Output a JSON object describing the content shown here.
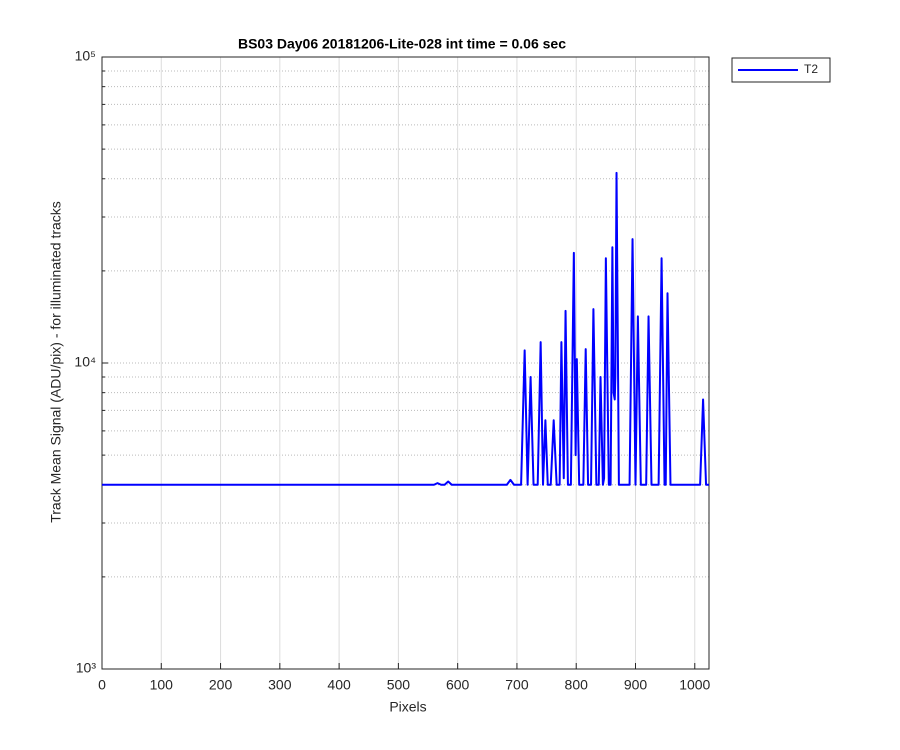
{
  "chart_data": {
    "type": "line",
    "title": "BS03 Day06 20181206-Lite-028 int time = 0.06 sec",
    "xlabel": "Pixels",
    "ylabel": "Track Mean Signal (ADU/pix) - for illuminated tracks",
    "log_y": true,
    "grid": true,
    "legend_position": "outside-top-right",
    "xlim": [
      0,
      1024
    ],
    "xticks": [
      0,
      100,
      200,
      300,
      400,
      500,
      600,
      700,
      800,
      900,
      1000
    ],
    "ylim": [
      1000,
      100000
    ],
    "yticks": [
      {
        "value": 1000,
        "label": "10³"
      },
      {
        "value": 10000,
        "label": "10⁴"
      },
      {
        "value": 100000,
        "label": "10⁵"
      }
    ],
    "minor_yticks": [
      2000,
      3000,
      4000,
      5000,
      6000,
      7000,
      8000,
      9000,
      20000,
      30000,
      40000,
      50000,
      60000,
      70000,
      80000,
      90000
    ],
    "x": [
      0,
      560,
      566,
      572,
      578,
      584,
      590,
      683,
      689,
      695,
      707,
      713,
      718,
      723,
      728,
      735,
      740,
      744,
      748,
      752,
      757,
      762,
      767,
      772,
      775,
      779,
      782,
      786,
      791,
      796,
      799,
      801,
      805,
      812,
      816,
      820,
      825,
      829,
      834,
      838,
      841,
      845,
      847,
      850,
      855,
      858,
      861,
      863,
      865,
      866,
      868,
      872,
      890,
      895,
      900,
      904,
      909,
      918,
      922,
      927,
      939,
      944,
      949,
      951,
      954,
      959,
      1009,
      1014,
      1019,
      1024
    ],
    "series": [
      {
        "name": "T2",
        "color": "#0000ff",
        "values": [
          4000,
          4000,
          4050,
          4000,
          4000,
          4100,
          4000,
          4000,
          4150,
          4000,
          4000,
          11000,
          4000,
          9000,
          4000,
          4000,
          11700,
          4000,
          6500,
          4000,
          4000,
          6500,
          4000,
          4000,
          11700,
          4200,
          14800,
          4000,
          4000,
          22900,
          5000,
          10300,
          4000,
          4000,
          11100,
          4000,
          4000,
          15000,
          4000,
          4000,
          9000,
          4000,
          4200,
          22000,
          4000,
          4000,
          23900,
          8000,
          7600,
          9000,
          41800,
          4000,
          4000,
          25400,
          4000,
          14200,
          4000,
          4000,
          14200,
          4000,
          4000,
          22000,
          4000,
          4000,
          16900,
          4000,
          4000,
          7600,
          4000,
          4000
        ]
      }
    ]
  }
}
